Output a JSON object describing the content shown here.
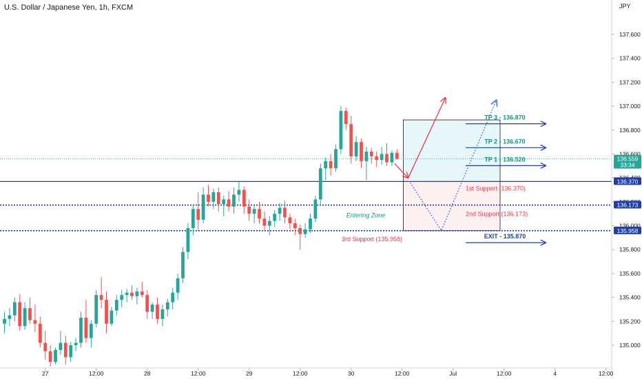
{
  "header": {
    "symbol": "U.S. Dollar / Japanese Yen",
    "interval": "1h",
    "exchange": "FXCM"
  },
  "colors": {
    "up": "#26a69a",
    "down": "#ef5350",
    "level_line": "#1e3fa8",
    "tp_text": "#089981",
    "support_text": "#f23645",
    "exit_text": "#1e3fa8",
    "target_zone_fill": "#e8f7f9",
    "entry_zone_fill": "#fdf0f1",
    "up_arrow": "#f23645",
    "dotted_path": "#2962ff"
  },
  "chart_data": {
    "type": "candlestick",
    "symbol": "U.S. Dollar / Japanese Yen",
    "interval": "1h",
    "exchange": "FXCM",
    "currency": "JPY",
    "last_price": "136.559",
    "countdown": "33:34",
    "ylim": [
      134.82,
      137.88
    ],
    "x_ticks": [
      {
        "label": "27",
        "bar": 8
      },
      {
        "label": "12:00",
        "bar": 18
      },
      {
        "label": "28",
        "bar": 28
      },
      {
        "label": "12:00",
        "bar": 38
      },
      {
        "label": "29",
        "bar": 48
      },
      {
        "label": "12:00",
        "bar": 58
      },
      {
        "label": "30",
        "bar": 68
      },
      {
        "label": "12:00",
        "bar": 78
      },
      {
        "label": "Jul",
        "bar": 88
      },
      {
        "label": "12:00",
        "bar": 98
      },
      {
        "label": "4",
        "bar": 108
      },
      {
        "label": "12:00",
        "bar": 118
      }
    ],
    "y_ticks": [
      {
        "value": 135.0,
        "label": "135.000"
      },
      {
        "value": 135.2,
        "label": "135.200"
      },
      {
        "value": 135.4,
        "label": "135.400"
      },
      {
        "value": 135.6,
        "label": "135.600"
      },
      {
        "value": 135.8,
        "label": "135.800"
      },
      {
        "value": 136.0,
        "label": "136.000"
      },
      {
        "value": 136.2,
        "label": "136.200"
      },
      {
        "value": 136.4,
        "label": "136.400"
      },
      {
        "value": 136.6,
        "label": "136.600"
      },
      {
        "value": 136.8,
        "label": "136.800"
      },
      {
        "value": 137.0,
        "label": "137.000"
      },
      {
        "value": 137.2,
        "label": "137.200"
      },
      {
        "value": 137.4,
        "label": "137.400"
      },
      {
        "value": 137.6,
        "label": "137.600"
      }
    ],
    "price_tags": [
      {
        "value": 136.559,
        "label": "136.559",
        "sub": "33:34",
        "color": "#26a69a"
      },
      {
        "value": 136.37,
        "label": "136.370",
        "color": "#1e3fa8"
      },
      {
        "value": 136.173,
        "label": "136.173",
        "color": "#1e3fa8"
      },
      {
        "value": 135.958,
        "label": "135.958",
        "color": "#1e3fa8"
      }
    ],
    "levels": [
      {
        "value": 136.37,
        "style": "solid"
      },
      {
        "value": 136.173,
        "style": "dotted"
      },
      {
        "value": 135.958,
        "style": "dotted"
      }
    ],
    "last_price_value": 136.559,
    "candles": [
      [
        0,
        135.18,
        135.28,
        135.1,
        135.22
      ],
      [
        1,
        135.22,
        135.31,
        135.16,
        135.25
      ],
      [
        2,
        135.25,
        135.4,
        135.2,
        135.36
      ],
      [
        3,
        135.36,
        135.43,
        135.12,
        135.16
      ],
      [
        4,
        135.16,
        135.36,
        135.13,
        135.31
      ],
      [
        5,
        135.31,
        135.4,
        135.18,
        135.21
      ],
      [
        6,
        135.21,
        135.34,
        135.11,
        135.18
      ],
      [
        7,
        135.18,
        135.24,
        134.98,
        135.02
      ],
      [
        8,
        135.02,
        135.12,
        134.88,
        134.95
      ],
      [
        9,
        134.95,
        135.0,
        134.82,
        134.86
      ],
      [
        10,
        134.86,
        134.98,
        134.84,
        134.96
      ],
      [
        11,
        134.96,
        135.12,
        134.92,
        135.02
      ],
      [
        12,
        135.02,
        135.08,
        134.84,
        134.9
      ],
      [
        13,
        134.9,
        135.03,
        134.86,
        135.0
      ],
      [
        14,
        135.0,
        135.06,
        134.95,
        135.02
      ],
      [
        15,
        135.02,
        135.28,
        134.98,
        135.23
      ],
      [
        16,
        135.23,
        135.38,
        135.02,
        135.06
      ],
      [
        17,
        135.06,
        135.21,
        134.98,
        135.18
      ],
      [
        18,
        135.18,
        135.46,
        135.15,
        135.42
      ],
      [
        19,
        135.42,
        135.57,
        135.31,
        135.38
      ],
      [
        20,
        135.38,
        135.45,
        135.1,
        135.18
      ],
      [
        21,
        135.18,
        135.32,
        135.16,
        135.29
      ],
      [
        22,
        135.29,
        135.42,
        135.25,
        135.38
      ],
      [
        23,
        135.38,
        135.46,
        135.32,
        135.42
      ],
      [
        24,
        135.42,
        135.47,
        135.36,
        135.44
      ],
      [
        25,
        135.44,
        135.5,
        135.38,
        135.41
      ],
      [
        26,
        135.41,
        135.48,
        135.34,
        135.45
      ],
      [
        27,
        135.45,
        135.53,
        135.4,
        135.42
      ],
      [
        28,
        135.42,
        135.46,
        135.22,
        135.28
      ],
      [
        29,
        135.28,
        135.36,
        135.22,
        135.34
      ],
      [
        30,
        135.34,
        135.4,
        135.18,
        135.22
      ],
      [
        31,
        135.22,
        135.34,
        135.16,
        135.3
      ],
      [
        32,
        135.3,
        135.39,
        135.24,
        135.36
      ],
      [
        33,
        135.36,
        135.48,
        135.3,
        135.44
      ],
      [
        34,
        135.44,
        135.6,
        135.38,
        135.56
      ],
      [
        35,
        135.56,
        135.82,
        135.52,
        135.78
      ],
      [
        36,
        135.78,
        136.02,
        135.72,
        135.98
      ],
      [
        37,
        135.98,
        136.18,
        135.92,
        136.14
      ],
      [
        38,
        136.14,
        136.28,
        135.96,
        136.05
      ],
      [
        39,
        136.05,
        136.32,
        136.02,
        136.26
      ],
      [
        40,
        136.26,
        136.34,
        136.16,
        136.2
      ],
      [
        41,
        136.2,
        136.31,
        136.14,
        136.28
      ],
      [
        42,
        136.28,
        136.32,
        136.12,
        136.18
      ],
      [
        43,
        136.18,
        136.25,
        136.08,
        136.22
      ],
      [
        44,
        136.22,
        136.29,
        136.12,
        136.16
      ],
      [
        45,
        136.16,
        136.32,
        136.1,
        136.26
      ],
      [
        46,
        136.26,
        136.37,
        136.2,
        136.3
      ],
      [
        47,
        136.3,
        136.33,
        136.1,
        136.16
      ],
      [
        48,
        136.16,
        136.22,
        136.04,
        136.1
      ],
      [
        49,
        136.1,
        136.18,
        136.02,
        136.14
      ],
      [
        50,
        136.14,
        136.2,
        136.02,
        136.06
      ],
      [
        51,
        136.06,
        136.12,
        135.96,
        136.0
      ],
      [
        52,
        136.0,
        136.08,
        135.92,
        136.04
      ],
      [
        53,
        136.04,
        136.13,
        135.99,
        136.1
      ],
      [
        54,
        136.1,
        136.19,
        136.04,
        136.15
      ],
      [
        55,
        136.15,
        136.21,
        136.02,
        136.07
      ],
      [
        56,
        136.07,
        136.1,
        135.97,
        136.02
      ],
      [
        57,
        136.02,
        136.06,
        135.92,
        135.98
      ],
      [
        58,
        135.98,
        136.01,
        135.8,
        135.93
      ],
      [
        59,
        135.93,
        136.02,
        135.9,
        135.97
      ],
      [
        60,
        135.97,
        136.1,
        135.94,
        136.06
      ],
      [
        61,
        136.06,
        136.25,
        136.03,
        136.22
      ],
      [
        62,
        136.22,
        136.52,
        136.18,
        136.48
      ],
      [
        63,
        136.48,
        136.57,
        136.38,
        136.54
      ],
      [
        64,
        136.54,
        136.6,
        136.42,
        136.48
      ],
      [
        65,
        136.48,
        136.68,
        136.45,
        136.64
      ],
      [
        66,
        136.64,
        137.0,
        136.6,
        136.96
      ],
      [
        67,
        136.96,
        136.99,
        136.8,
        136.85
      ],
      [
        68,
        136.85,
        136.92,
        136.52,
        136.58
      ],
      [
        69,
        136.58,
        136.75,
        136.54,
        136.7
      ],
      [
        70,
        136.7,
        136.73,
        136.48,
        136.54
      ],
      [
        71,
        136.54,
        136.66,
        136.38,
        136.62
      ],
      [
        72,
        136.62,
        136.65,
        136.52,
        136.58
      ],
      [
        73,
        136.58,
        136.62,
        136.49,
        136.55
      ],
      [
        74,
        136.55,
        136.66,
        136.51,
        136.6
      ],
      [
        75,
        136.6,
        136.69,
        136.5,
        136.53
      ],
      [
        76,
        136.53,
        136.63,
        136.5,
        136.61
      ],
      [
        77,
        136.61,
        136.64,
        136.55,
        136.559
      ]
    ],
    "annotations": {
      "tp": [
        {
          "label": "TP 3 - 136.870",
          "value": 136.87
        },
        {
          "label": "TP 2 - 136.670",
          "value": 136.67
        },
        {
          "label": "TP 1 - 136.520",
          "value": 136.52
        }
      ],
      "supports": [
        {
          "label": "1st Support (136.370)",
          "value": 136.37
        },
        {
          "label": "2nd Support (136.173)",
          "value": 136.173
        },
        {
          "label": "3rd Support (135.958)",
          "value": 135.958
        }
      ],
      "exit": {
        "label": "EXIT - 135.870",
        "value": 135.87
      },
      "entering_zone": "Entering Zone",
      "zone": {
        "bar_from": 78.5,
        "bar_to": 97.5,
        "top": 136.885,
        "mid": 136.37,
        "bottom": 135.958
      }
    }
  }
}
